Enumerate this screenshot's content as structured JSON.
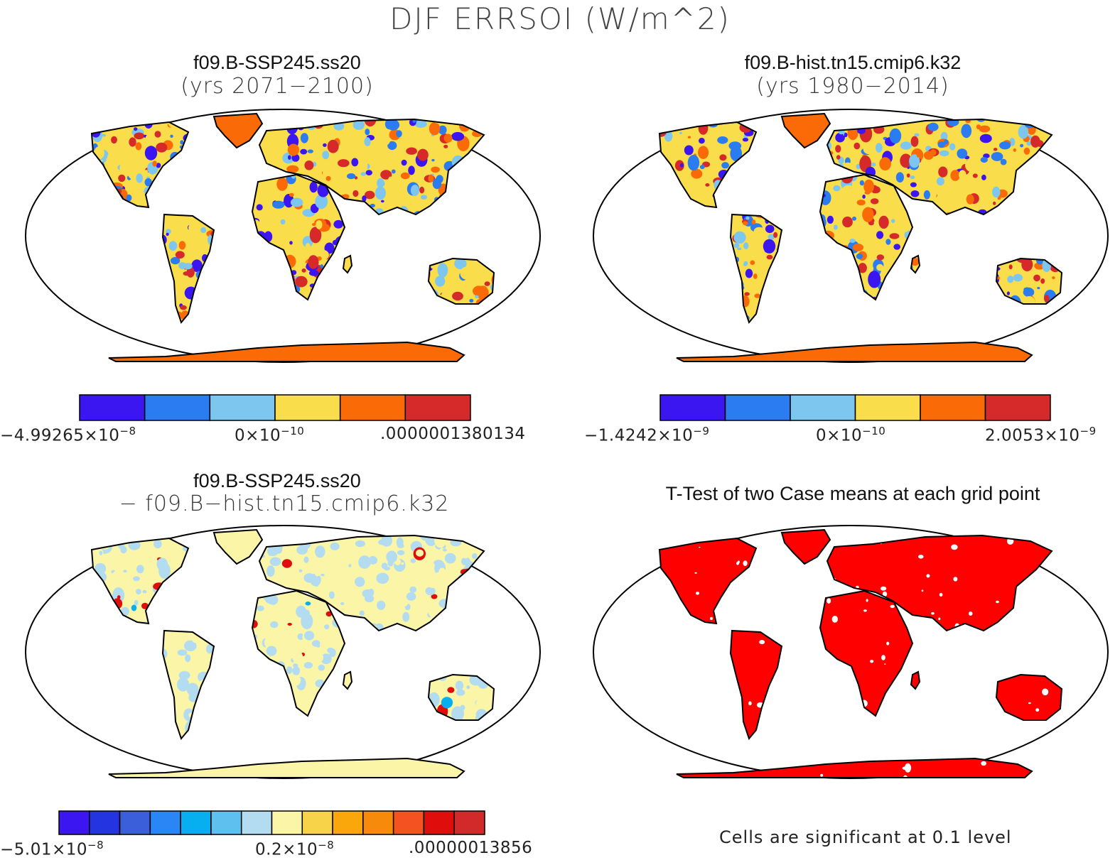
{
  "title": "DJF ERRSOI (W/m^2)",
  "colors": {
    "land_outline": "#000000",
    "significance": "#ff0000",
    "palette6": [
      "#3b16f0",
      "#2a7cf0",
      "#7cc6ef",
      "#f9dd4a",
      "#fa6a06",
      "#d62a2a"
    ],
    "palette14": [
      "#3b16f0",
      "#2434e0",
      "#3b5fdb",
      "#2a86f5",
      "#08aff0",
      "#5dc0ee",
      "#b3dcf0",
      "#fbf5a8",
      "#f7d34a",
      "#f9a70a",
      "#f78a0a",
      "#f55222",
      "#e00d0d",
      "#d22a2a"
    ]
  },
  "panels": {
    "p1": {
      "title": "f09.B-SSP245.ss20",
      "subtitle": "(yrs 2071−2100)",
      "colorbar": {
        "left": "−4.99265×10",
        "left_exp": "−8",
        "mid": "0×10",
        "mid_exp": "−10",
        "right": ".0000001380134",
        "right_exp": ""
      }
    },
    "p2": {
      "title": "f09.B-hist.tn15.cmip6.k32",
      "subtitle": "(yrs 1980−2014)",
      "colorbar": {
        "left": "−1.4242×10",
        "left_exp": "−9",
        "mid": "0×10",
        "mid_exp": "−10",
        "right": "2.0053×10",
        "right_exp": "−9"
      }
    },
    "p3": {
      "title": "f09.B-SSP245.ss20",
      "subtitle": "− f09.B−hist.tn15.cmip6.k32",
      "colorbar": {
        "left": "−5.01×10",
        "left_exp": "−8",
        "mid": "0.2×10",
        "mid_exp": "−8",
        "right": ".00000013856",
        "right_exp": ""
      }
    },
    "p4": {
      "title": "T-Test of two Case means at each grid point",
      "note": "Cells are significant at 0.1 level"
    }
  }
}
